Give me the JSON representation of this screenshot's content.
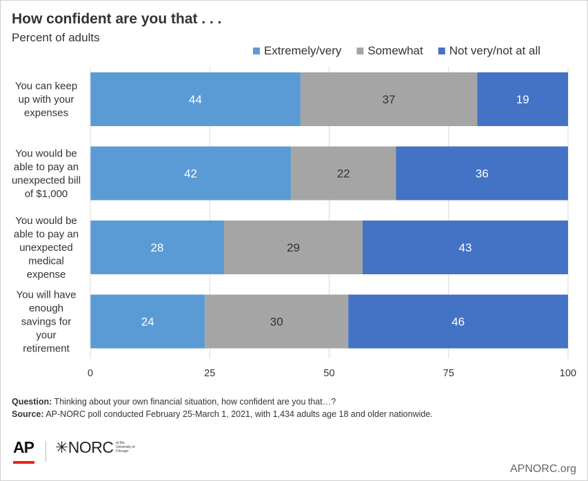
{
  "header": {
    "title": "How confident are you that . . .",
    "subtitle": "Percent of adults"
  },
  "chart_data": {
    "type": "bar",
    "orientation": "horizontal",
    "stacked": true,
    "categories": [
      [
        "You can keep",
        "up with your",
        "expenses"
      ],
      [
        "You would be",
        "able to pay an",
        "unexpected bill",
        "of $1,000"
      ],
      [
        "You would be",
        "able to pay an",
        "unexpected",
        "medical",
        "expense"
      ],
      [
        "You will have",
        "enough",
        "savings for",
        "your",
        "retirement"
      ]
    ],
    "series": [
      {
        "name": "Extremely/very",
        "color": "#5b9bd5",
        "label_color": "#ffffff",
        "values": [
          44,
          42,
          28,
          24
        ]
      },
      {
        "name": "Somewhat",
        "color": "#a5a5a5",
        "label_color": "#333333",
        "values": [
          37,
          22,
          29,
          30
        ]
      },
      {
        "name": "Not very/not at all",
        "color": "#4472c4",
        "label_color": "#ffffff",
        "values": [
          19,
          36,
          43,
          46
        ]
      }
    ],
    "xlim": [
      0,
      100
    ],
    "xticks": [
      "0",
      "25",
      "50",
      "75",
      "100"
    ],
    "grid": true,
    "legend_position": "top-right"
  },
  "footer": {
    "question_label": "Question:",
    "question_text": " Thinking about your own financial situation, how confident are you that…?",
    "source_label": "Source:",
    "source_text": " AP-NORC poll conducted February 25-March 1, 2021, with 1,434 adults age 18 and older nationwide.",
    "logo_ap": "AP",
    "logo_norc": "✳NORC",
    "logo_norc_small": "at the University of Chicago",
    "site": "APNORC.org"
  }
}
